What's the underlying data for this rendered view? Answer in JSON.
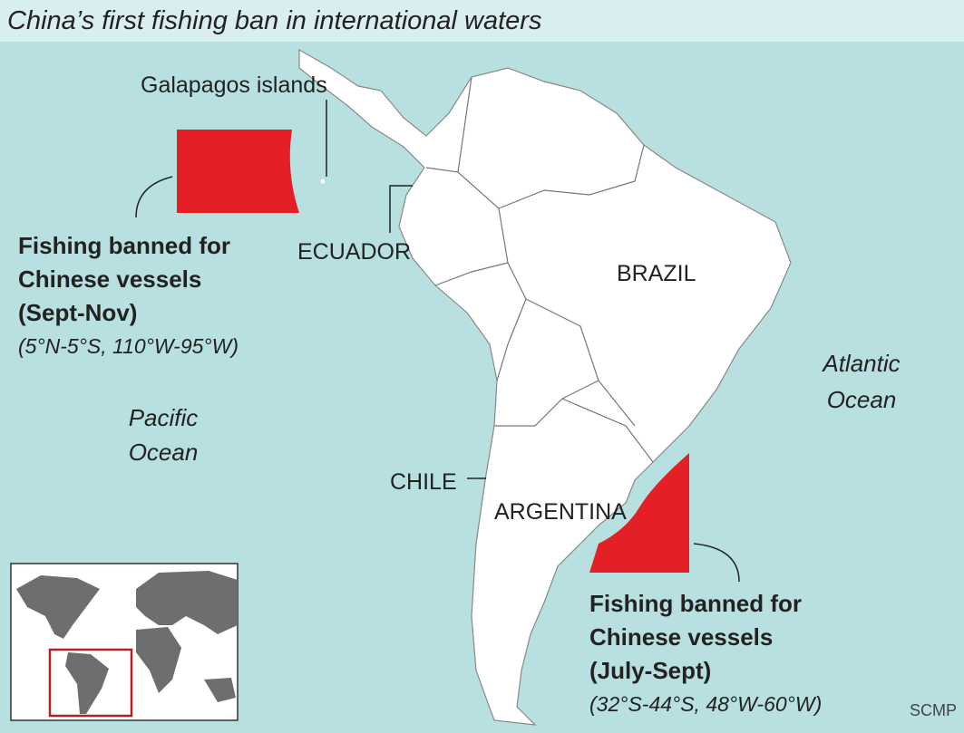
{
  "title": "China’s first fishing ban in international waters",
  "labels": {
    "galapagos": "Galapagos islands",
    "ecuador": "ECUADOR",
    "brazil": "BRAZIL",
    "chile": "CHILE",
    "argentina": "ARGENTINA",
    "pacific": [
      "Pacific",
      "Ocean"
    ],
    "atlantic": [
      "Atlantic",
      "Ocean"
    ]
  },
  "zones": [
    {
      "heading": [
        "Fishing banned for",
        "Chinese vessels",
        "(Sept-Nov)"
      ],
      "coords": "(5°N-5°S, 110°W-95°W)"
    },
    {
      "heading": [
        "Fishing banned for",
        "Chinese vessels",
        "(July-Sept)"
      ],
      "coords": "(32°S-44°S, 48°W-60°W)"
    }
  ],
  "source": "SCMP"
}
